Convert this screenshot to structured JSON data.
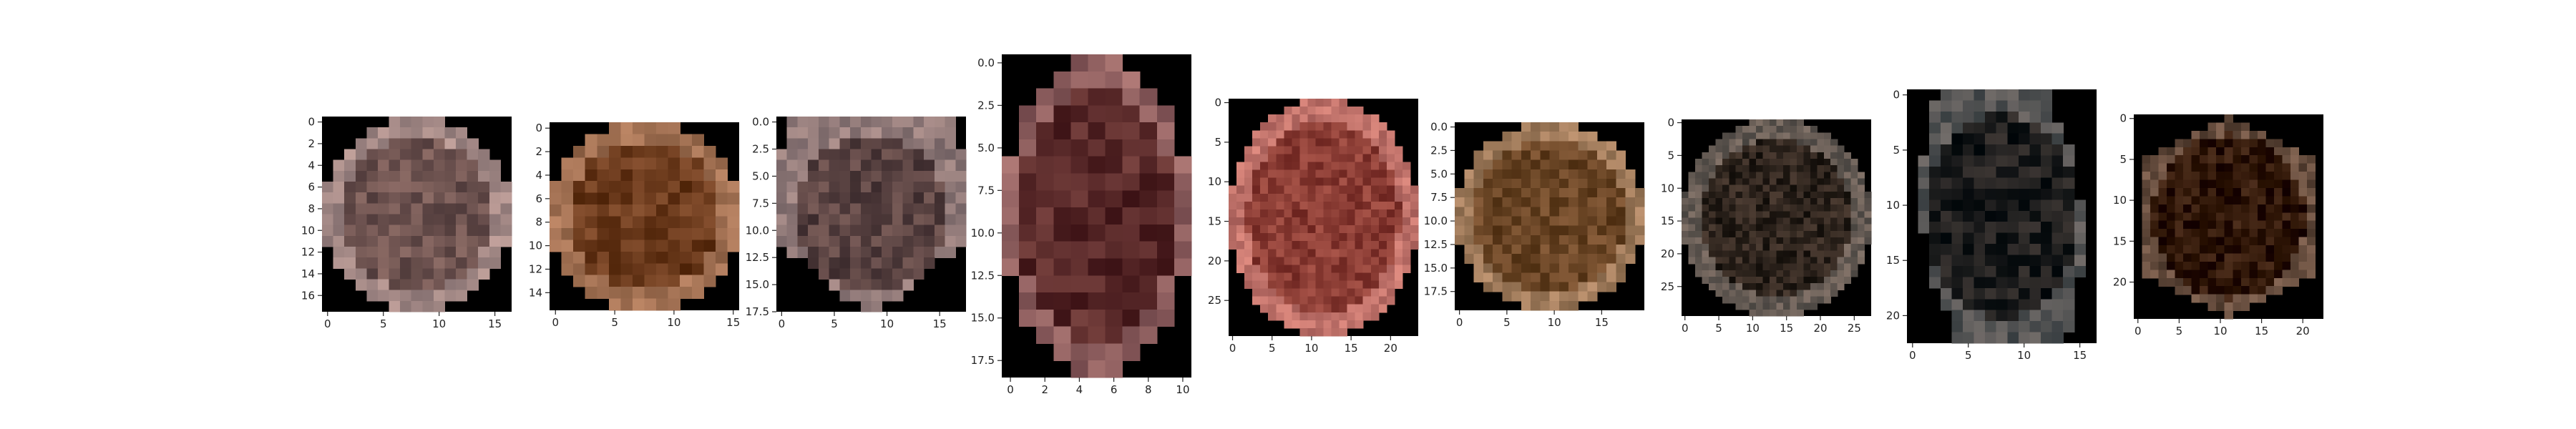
{
  "chart_data": [
    {
      "type": "heatmap",
      "image_id": 1,
      "grid": {
        "cols": 17,
        "rows": 18
      },
      "x_ticks": [
        "0",
        "5",
        "10",
        "15"
      ],
      "y_ticks": [
        "0",
        "2",
        "4",
        "6",
        "8",
        "10",
        "12",
        "14",
        "16"
      ],
      "dominant_color": "#6e5350",
      "shape": "ellipse"
    },
    {
      "type": "heatmap",
      "image_id": 2,
      "grid": {
        "cols": 16,
        "rows": 16
      },
      "x_ticks": [
        "0",
        "5",
        "10",
        "15"
      ],
      "y_ticks": [
        "0",
        "2",
        "4",
        "6",
        "8",
        "10",
        "12",
        "14"
      ],
      "dominant_color": "#6b3a1c",
      "shape": "ellipse"
    },
    {
      "type": "heatmap",
      "image_id": 3,
      "grid": {
        "cols": 18,
        "rows": 18
      },
      "x_ticks": [
        "0",
        "5",
        "10",
        "15"
      ],
      "y_ticks": [
        "0.0",
        "2.5",
        "5.0",
        "7.5",
        "10.0",
        "12.5",
        "15.0",
        "17.5"
      ],
      "dominant_color": "#5a4342",
      "shape": "shield"
    },
    {
      "type": "heatmap",
      "image_id": 4,
      "grid": {
        "cols": 11,
        "rows": 19
      },
      "x_ticks": [
        "0",
        "2",
        "4",
        "6",
        "8",
        "10"
      ],
      "y_ticks": [
        "0.0",
        "2.5",
        "5.0",
        "7.5",
        "10.0",
        "12.5",
        "15.0",
        "17.5"
      ],
      "dominant_color": "#5a2a2a",
      "shape": "ellipse"
    },
    {
      "type": "heatmap",
      "image_id": 5,
      "grid": {
        "cols": 24,
        "rows": 30
      },
      "x_ticks": [
        "0",
        "5",
        "10",
        "15",
        "20"
      ],
      "y_ticks": [
        "0",
        "5",
        "10",
        "15",
        "20",
        "25"
      ],
      "dominant_color": "#8a3c34",
      "shape": "ellipse"
    },
    {
      "type": "heatmap",
      "image_id": 6,
      "grid": {
        "cols": 20,
        "rows": 20
      },
      "x_ticks": [
        "0",
        "5",
        "10",
        "15"
      ],
      "y_ticks": [
        "0.0",
        "2.5",
        "5.0",
        "7.5",
        "10.0",
        "12.5",
        "15.0",
        "17.5"
      ],
      "dominant_color": "#6a4525",
      "shape": "ellipse"
    },
    {
      "type": "heatmap",
      "image_id": 7,
      "grid": {
        "cols": 28,
        "rows": 30
      },
      "x_ticks": [
        "0",
        "5",
        "10",
        "15",
        "20",
        "25"
      ],
      "y_ticks": [
        "0",
        "5",
        "10",
        "15",
        "20",
        "25"
      ],
      "dominant_color": "#2e241d",
      "shape": "ellipse"
    },
    {
      "type": "heatmap",
      "image_id": 8,
      "grid": {
        "cols": 17,
        "rows": 23
      },
      "x_ticks": [
        "0",
        "5",
        "10",
        "15"
      ],
      "y_ticks": [
        "0",
        "5",
        "10",
        "15",
        "20"
      ],
      "dominant_color": "#1d1d1d",
      "shape": "irregular"
    },
    {
      "type": "heatmap",
      "image_id": 9,
      "grid": {
        "cols": 23,
        "rows": 25
      },
      "x_ticks": [
        "0",
        "5",
        "10",
        "15",
        "20"
      ],
      "y_ticks": [
        "0",
        "5",
        "10",
        "15",
        "20"
      ],
      "dominant_color": "#2f1607",
      "shape": "hexagon"
    }
  ]
}
